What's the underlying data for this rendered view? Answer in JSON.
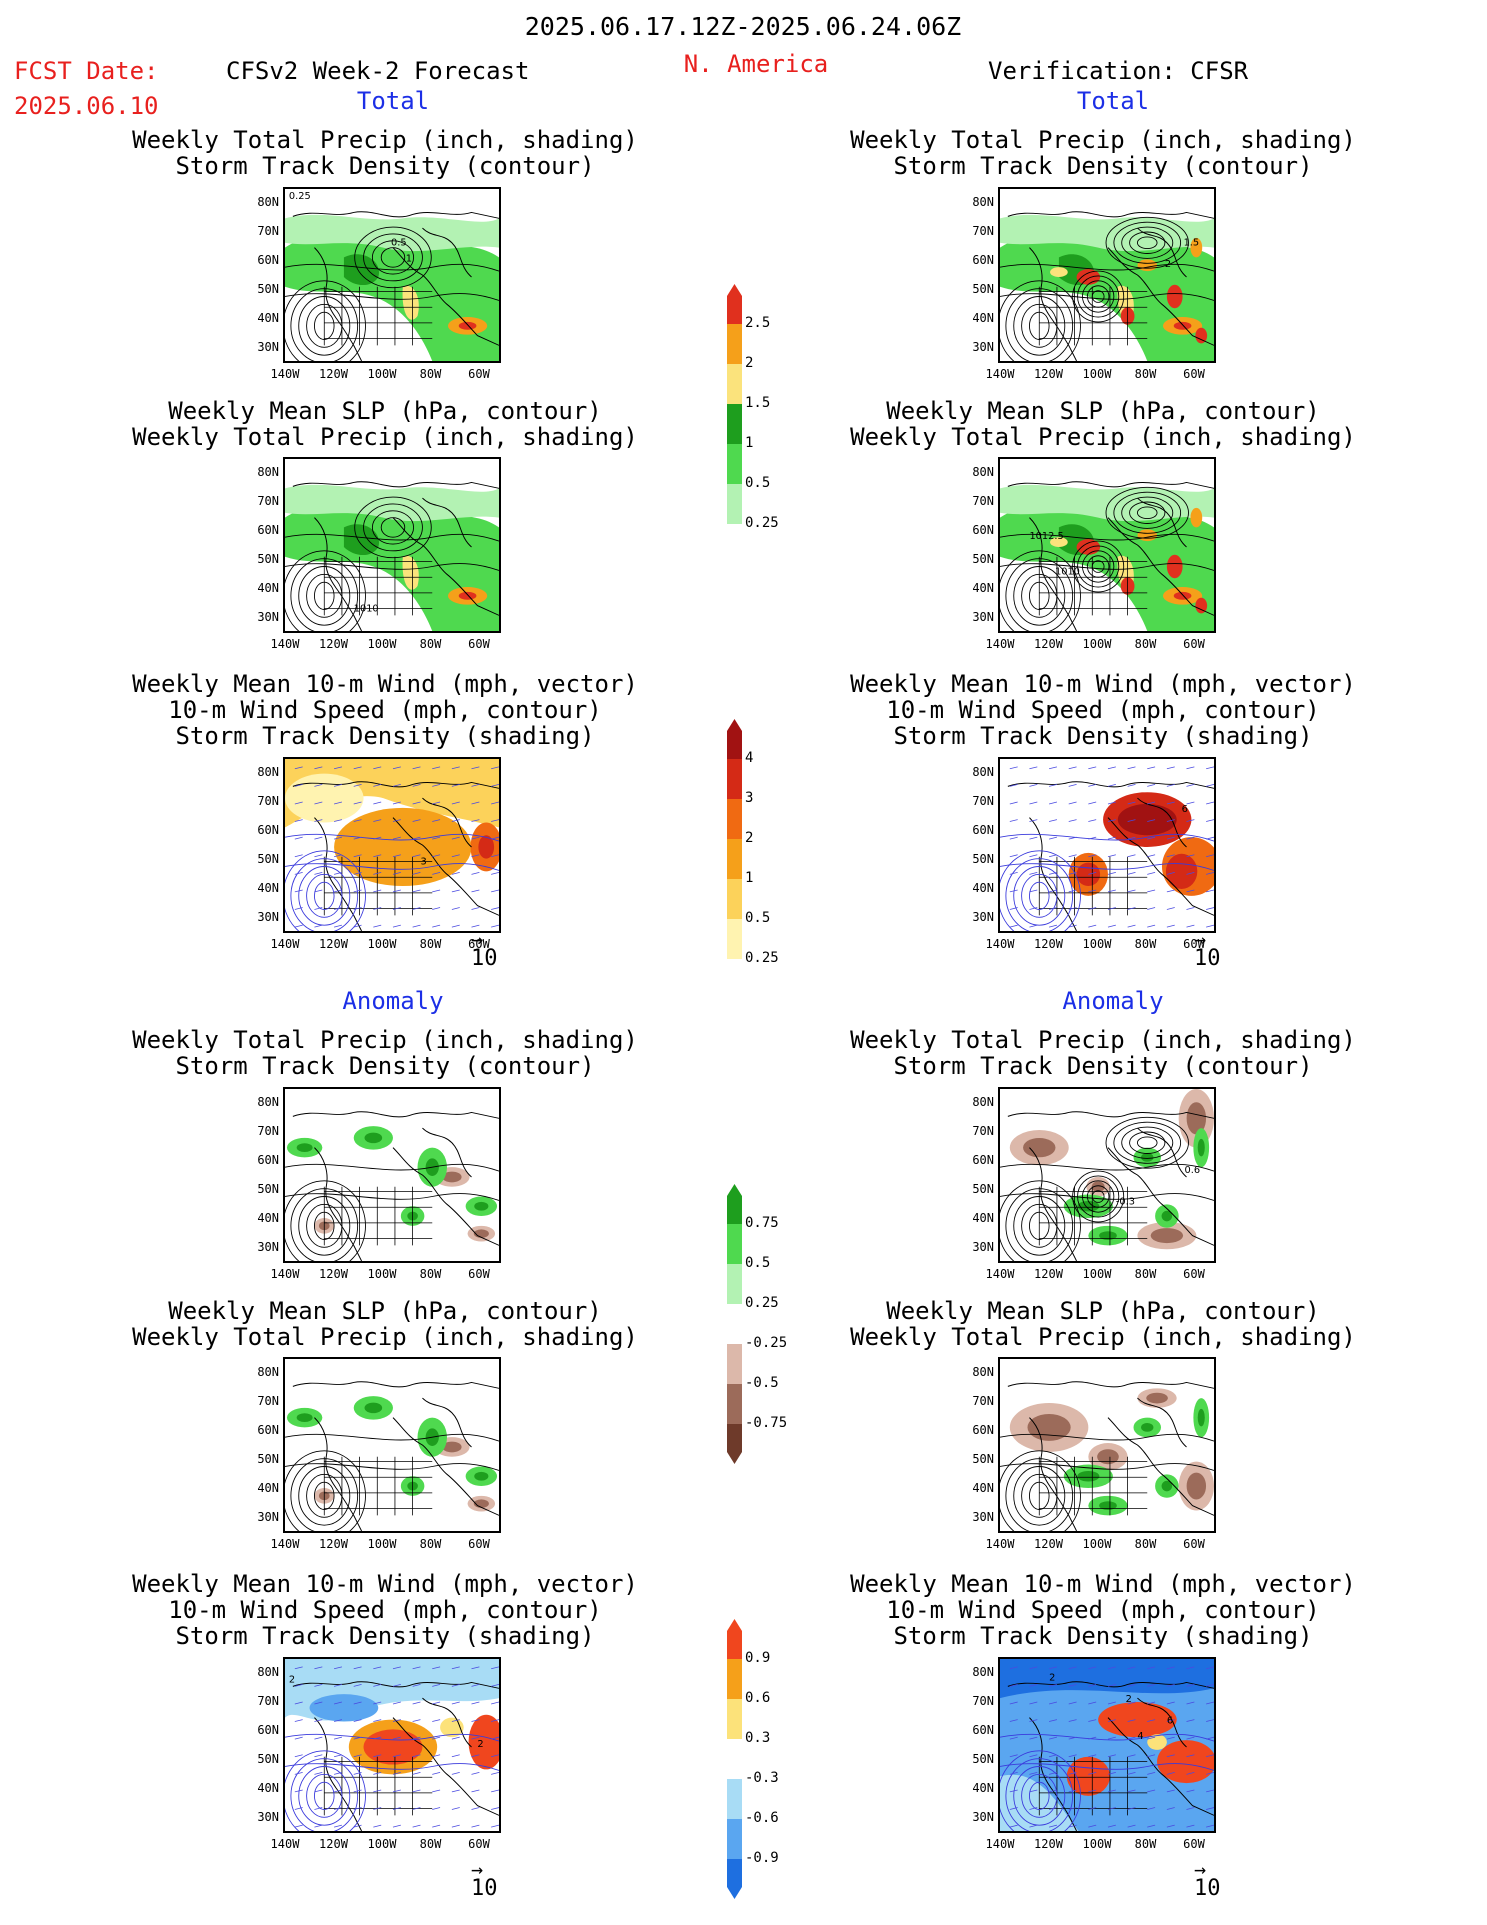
{
  "header": {
    "date_range": "2025.06.17.12Z-2025.06.24.06Z",
    "fcst_label": "FCST Date:",
    "fcst_date": "2025.06.10",
    "forecast_title": "CFSv2 Week-2 Forecast",
    "region": "N. America",
    "verification": "Verification: CFSR"
  },
  "sections": {
    "total": "Total",
    "anomaly": "Anomaly"
  },
  "titles": {
    "precip_a": "Weekly Total Precip (inch, shading)",
    "precip_b": "Storm Track Density (contour)",
    "slp_a": "Weekly Mean SLP (hPa, contour)",
    "slp_b": "Weekly Total Precip (inch, shading)",
    "wind_a": "Weekly Mean 10-m Wind (mph, vector)",
    "wind_b": "10-m Wind Speed (mph, contour)",
    "wind_c": "Storm Track Density (shading)"
  },
  "axes": {
    "lat_ticks": [
      "80N",
      "70N",
      "60N",
      "50N",
      "40N",
      "30N"
    ],
    "lon_ticks": [
      "140W",
      "120W",
      "100W",
      "80W",
      "60W"
    ]
  },
  "vector_ref": "10",
  "contour_labels": {
    "p1_a": "0.25",
    "p1_b": "0.5",
    "p1_c": "1",
    "p2_a": "2",
    "p2_b": "1.5",
    "s1_a": "1010",
    "s2_a": "1012.5",
    "s2_b": "1010",
    "w1_a": "3",
    "w2_a": "6",
    "ap2_a": "0.6",
    "ap2_b": "-0.3",
    "aw1_a": "2",
    "aw1_b": "2",
    "aw2_a": "2",
    "aw2_b": "2",
    "aw2_c": "4",
    "aw2_d": "6"
  },
  "colorbars": {
    "precip_total": {
      "colors": [
        "#ffffff",
        "#b3f2b3",
        "#4fd94f",
        "#1e9e1e",
        "#fbe37c",
        "#f5a01a",
        "#e0301e"
      ],
      "labels": [
        "0.25",
        "0.5",
        "1",
        "1.5",
        "2",
        "2.5"
      ]
    },
    "storm_total": {
      "colors": [
        "#ffffff",
        "#fff3b0",
        "#fcd25a",
        "#f5a01a",
        "#f06a12",
        "#d42a16",
        "#a11212"
      ],
      "labels": [
        "0.25",
        "0.5",
        "1",
        "2",
        "3",
        "4"
      ]
    },
    "precip_anom": {
      "colors": [
        "#6e3a2a",
        "#9c6b5a",
        "#dcb8aa",
        "#ffffff",
        "#b3f2b3",
        "#4fd94f",
        "#1e9e1e"
      ],
      "labels": [
        "-0.75",
        "-0.5",
        "-0.25",
        "0.25",
        "0.5",
        "0.75"
      ]
    },
    "storm_anom": {
      "colors": [
        "#1e6fe0",
        "#5aa6f0",
        "#a8dcf5",
        "#ffffff",
        "#fce27a",
        "#f5a01a",
        "#f0461e"
      ],
      "labels": [
        "-0.9",
        "-0.6",
        "-0.3",
        "0.3",
        "0.6",
        "0.9"
      ]
    }
  }
}
